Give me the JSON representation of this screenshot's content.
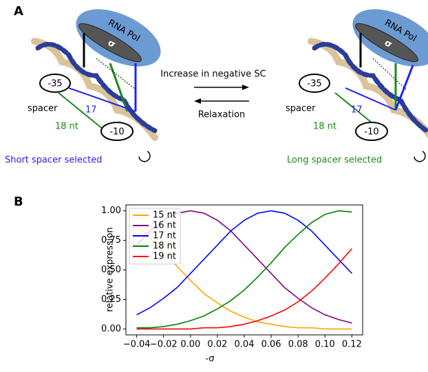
{
  "panel_labels": [
    "A",
    "B"
  ],
  "diagram": {
    "left": {
      "polymerase": "RNA Pol",
      "sigma": "σ",
      "minus35": "-35",
      "minus10": "-10",
      "spacer": "spacer",
      "short": "17",
      "long": "18 nt",
      "caption": "Short spacer selected"
    },
    "right": {
      "polymerase": "RNA Pol",
      "sigma": "σ",
      "minus35": "-35",
      "minus10": "-10",
      "spacer": "spacer",
      "short": "17",
      "long": "18 nt",
      "caption": "Long spacer selected"
    },
    "forward": "Increase in negative SC",
    "backward": "Relaxation"
  },
  "chart_data": {
    "type": "line",
    "xlabel": "-σ",
    "ylabel": "relative expression",
    "x": [
      -0.04,
      -0.03,
      -0.02,
      -0.01,
      0,
      0.01,
      0.02,
      0.03,
      0.04,
      0.05,
      0.06,
      0.07,
      0.08,
      0.09,
      0.1,
      0.11,
      0.12
    ],
    "series": [
      {
        "name": "15 nt",
        "color": "#ffa500",
        "values": [
          0.88,
          0.77,
          0.65,
          0.53,
          0.41,
          0.3,
          0.22,
          0.15,
          0.1,
          0.06,
          0.04,
          0.02,
          0.01,
          0.01,
          0,
          0,
          0
        ]
      },
      {
        "name": "16 nt",
        "color": "#800080",
        "values": [
          0.71,
          0.83,
          0.92,
          0.98,
          1.0,
          0.98,
          0.92,
          0.83,
          0.71,
          0.59,
          0.47,
          0.35,
          0.26,
          0.18,
          0.12,
          0.08,
          0.05
        ]
      },
      {
        "name": "17 nt",
        "color": "#0000ff",
        "values": [
          0.12,
          0.18,
          0.26,
          0.35,
          0.47,
          0.59,
          0.71,
          0.83,
          0.92,
          0.98,
          1.0,
          0.98,
          0.92,
          0.83,
          0.71,
          0.59,
          0.47
        ]
      },
      {
        "name": "18 nt",
        "color": "#008000",
        "values": [
          0.01,
          0.01,
          0.02,
          0.04,
          0.07,
          0.11,
          0.17,
          0.24,
          0.33,
          0.44,
          0.56,
          0.69,
          0.8,
          0.9,
          0.97,
          1.0,
          0.99
        ]
      },
      {
        "name": "19 nt",
        "color": "#ff0000",
        "values": [
          0,
          0,
          0,
          0,
          0,
          0.01,
          0.01,
          0.02,
          0.04,
          0.07,
          0.11,
          0.16,
          0.23,
          0.32,
          0.43,
          0.55,
          0.68
        ]
      }
    ],
    "xlim": [
      -0.048,
      0.128
    ],
    "xticks": [
      {
        "value": -0.04,
        "label": "−0.04"
      },
      {
        "value": -0.02,
        "label": "−0.02"
      },
      {
        "value": 0,
        "label": "0.00"
      },
      0.02,
      0.04,
      0.06,
      0.08,
      {
        "value": 0.1,
        "label": "0.10"
      },
      0.12
    ],
    "ylim": [
      -0.05,
      1.05
    ],
    "yticks": [
      {
        "value": 0,
        "label": "0.00"
      },
      0.25,
      {
        "value": 0.5,
        "label": "0.50"
      },
      0.75,
      {
        "value": 1,
        "label": "1.00"
      }
    ],
    "legend": "upper left",
    "grid": false
  }
}
